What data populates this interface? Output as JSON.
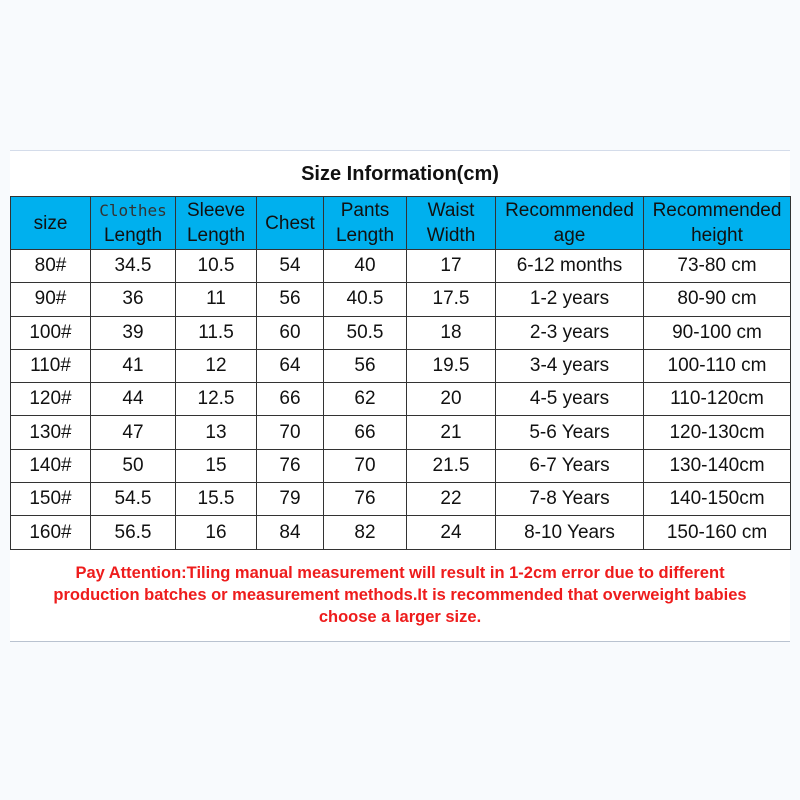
{
  "title": "Size Information(cm)",
  "headers": [
    [
      "size"
    ],
    [
      "Clothes",
      "Length"
    ],
    [
      "Sleeve",
      "Length"
    ],
    [
      "Chest"
    ],
    [
      "Pants",
      "Length"
    ],
    [
      "Waist",
      "Width"
    ],
    [
      "Recommended",
      "age"
    ],
    [
      "Recommended",
      "height"
    ]
  ],
  "rows": [
    [
      "80#",
      "34.5",
      "10.5",
      "54",
      "40",
      "17",
      "6-12 months",
      "73-80 cm"
    ],
    [
      "90#",
      "36",
      "11",
      "56",
      "40.5",
      "17.5",
      "1-2 years",
      "80-90 cm"
    ],
    [
      "100#",
      "39",
      "11.5",
      "60",
      "50.5",
      "18",
      "2-3 years",
      "90-100 cm"
    ],
    [
      "110#",
      "41",
      "12",
      "64",
      "56",
      "19.5",
      "3-4 years",
      "100-110 cm"
    ],
    [
      "120#",
      "44",
      "12.5",
      "66",
      "62",
      "20",
      "4-5 years",
      "110-120cm"
    ],
    [
      "130#",
      "47",
      "13",
      "70",
      "66",
      "21",
      "5-6 Years",
      "120-130cm"
    ],
    [
      "140#",
      "50",
      "15",
      "76",
      "70",
      "21.5",
      "6-7 Years",
      "130-140cm"
    ],
    [
      "150#",
      "54.5",
      "15.5",
      "79",
      "76",
      "22",
      "7-8 Years",
      "140-150cm"
    ],
    [
      "160#",
      "56.5",
      "16",
      "84",
      "82",
      "24",
      "8-10 Years",
      "150-160 cm"
    ]
  ],
  "note": [
    "Pay Attention:Tiling manual measurement will result in 1-2cm error due to different",
    "production batches or measurement methods.It is recommended that overweight babies",
    "choose a larger size."
  ],
  "colors": {
    "header_bg": "#00b0ee",
    "note": "#ee1c1c"
  }
}
